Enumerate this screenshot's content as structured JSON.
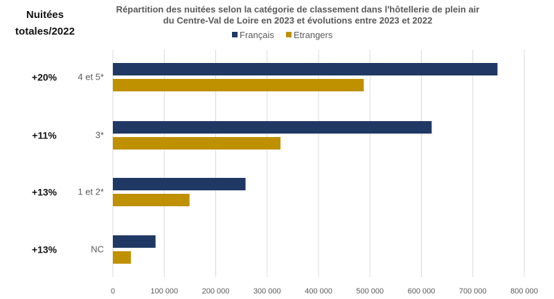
{
  "side_header": {
    "line1": "Nuitées",
    "line2": "totales/2022"
  },
  "chart_data": {
    "type": "bar",
    "orientation": "horizontal",
    "title_line1": "Répartition des nuitées selon la catégorie de classement dans l'hôtellerie de plein air",
    "title_line2": "du Centre-Val de Loire en 2023 et évolutions entre 2023 et 2022",
    "categories": [
      "4 et 5*",
      "3*",
      "1 et 2*",
      "NC"
    ],
    "evolutions": [
      "+20%",
      "+11%",
      "+13%",
      "+13%"
    ],
    "series": [
      {
        "name": "Français",
        "color": "#1f3864",
        "values": [
          748000,
          620000,
          258000,
          83000
        ]
      },
      {
        "name": "Etrangers",
        "color": "#bf9000",
        "values": [
          488000,
          326000,
          149000,
          35000
        ]
      }
    ],
    "xlim": [
      0,
      800000
    ],
    "ticks": [
      0,
      100000,
      200000,
      300000,
      400000,
      500000,
      600000,
      700000,
      800000
    ],
    "tick_labels": [
      "0",
      "100 000",
      "200 000",
      "300 000",
      "400 000",
      "500 000",
      "600 000",
      "700 000",
      "800 000"
    ],
    "grid": true,
    "legend_position": "top"
  }
}
